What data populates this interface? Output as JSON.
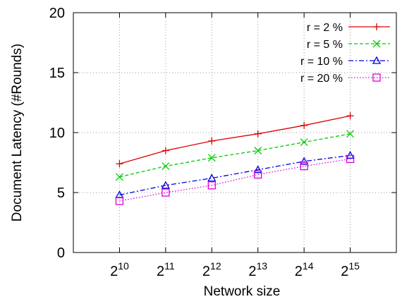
{
  "chart_data": {
    "type": "line",
    "title": "",
    "xlabel": "Network size",
    "ylabel": "Document Latency (#Rounds)",
    "x_tick_labels": [
      {
        "base": "2",
        "exp": "10"
      },
      {
        "base": "2",
        "exp": "11"
      },
      {
        "base": "2",
        "exp": "12"
      },
      {
        "base": "2",
        "exp": "13"
      },
      {
        "base": "2",
        "exp": "14"
      },
      {
        "base": "2",
        "exp": "15"
      }
    ],
    "x": [
      1024,
      2048,
      4096,
      8192,
      16384,
      32768
    ],
    "x_scale": "log2",
    "xlim": [
      512,
      65536
    ],
    "ylim": [
      0,
      20
    ],
    "y_ticks": [
      0,
      5,
      10,
      15,
      20
    ],
    "grid": true,
    "legend_position": "top-right",
    "series": [
      {
        "name": "r = 2 %",
        "color": "#dd0000",
        "dash": "solid",
        "marker": "plus",
        "values": [
          7.4,
          8.5,
          9.3,
          9.9,
          10.6,
          11.4
        ]
      },
      {
        "name": "r = 5 %",
        "color": "#00cc00",
        "dash": "dashed",
        "marker": "cross",
        "values": [
          6.3,
          7.2,
          7.9,
          8.5,
          9.2,
          9.9
        ]
      },
      {
        "name": "r = 10 %",
        "color": "#0000dd",
        "dash": "dashdot",
        "marker": "triangle",
        "values": [
          4.8,
          5.6,
          6.2,
          6.9,
          7.6,
          8.1
        ]
      },
      {
        "name": "r = 20 %",
        "color": "#dd00dd",
        "dash": "dotted",
        "marker": "square",
        "values": [
          4.3,
          5.0,
          5.6,
          6.5,
          7.2,
          7.8
        ]
      }
    ]
  }
}
